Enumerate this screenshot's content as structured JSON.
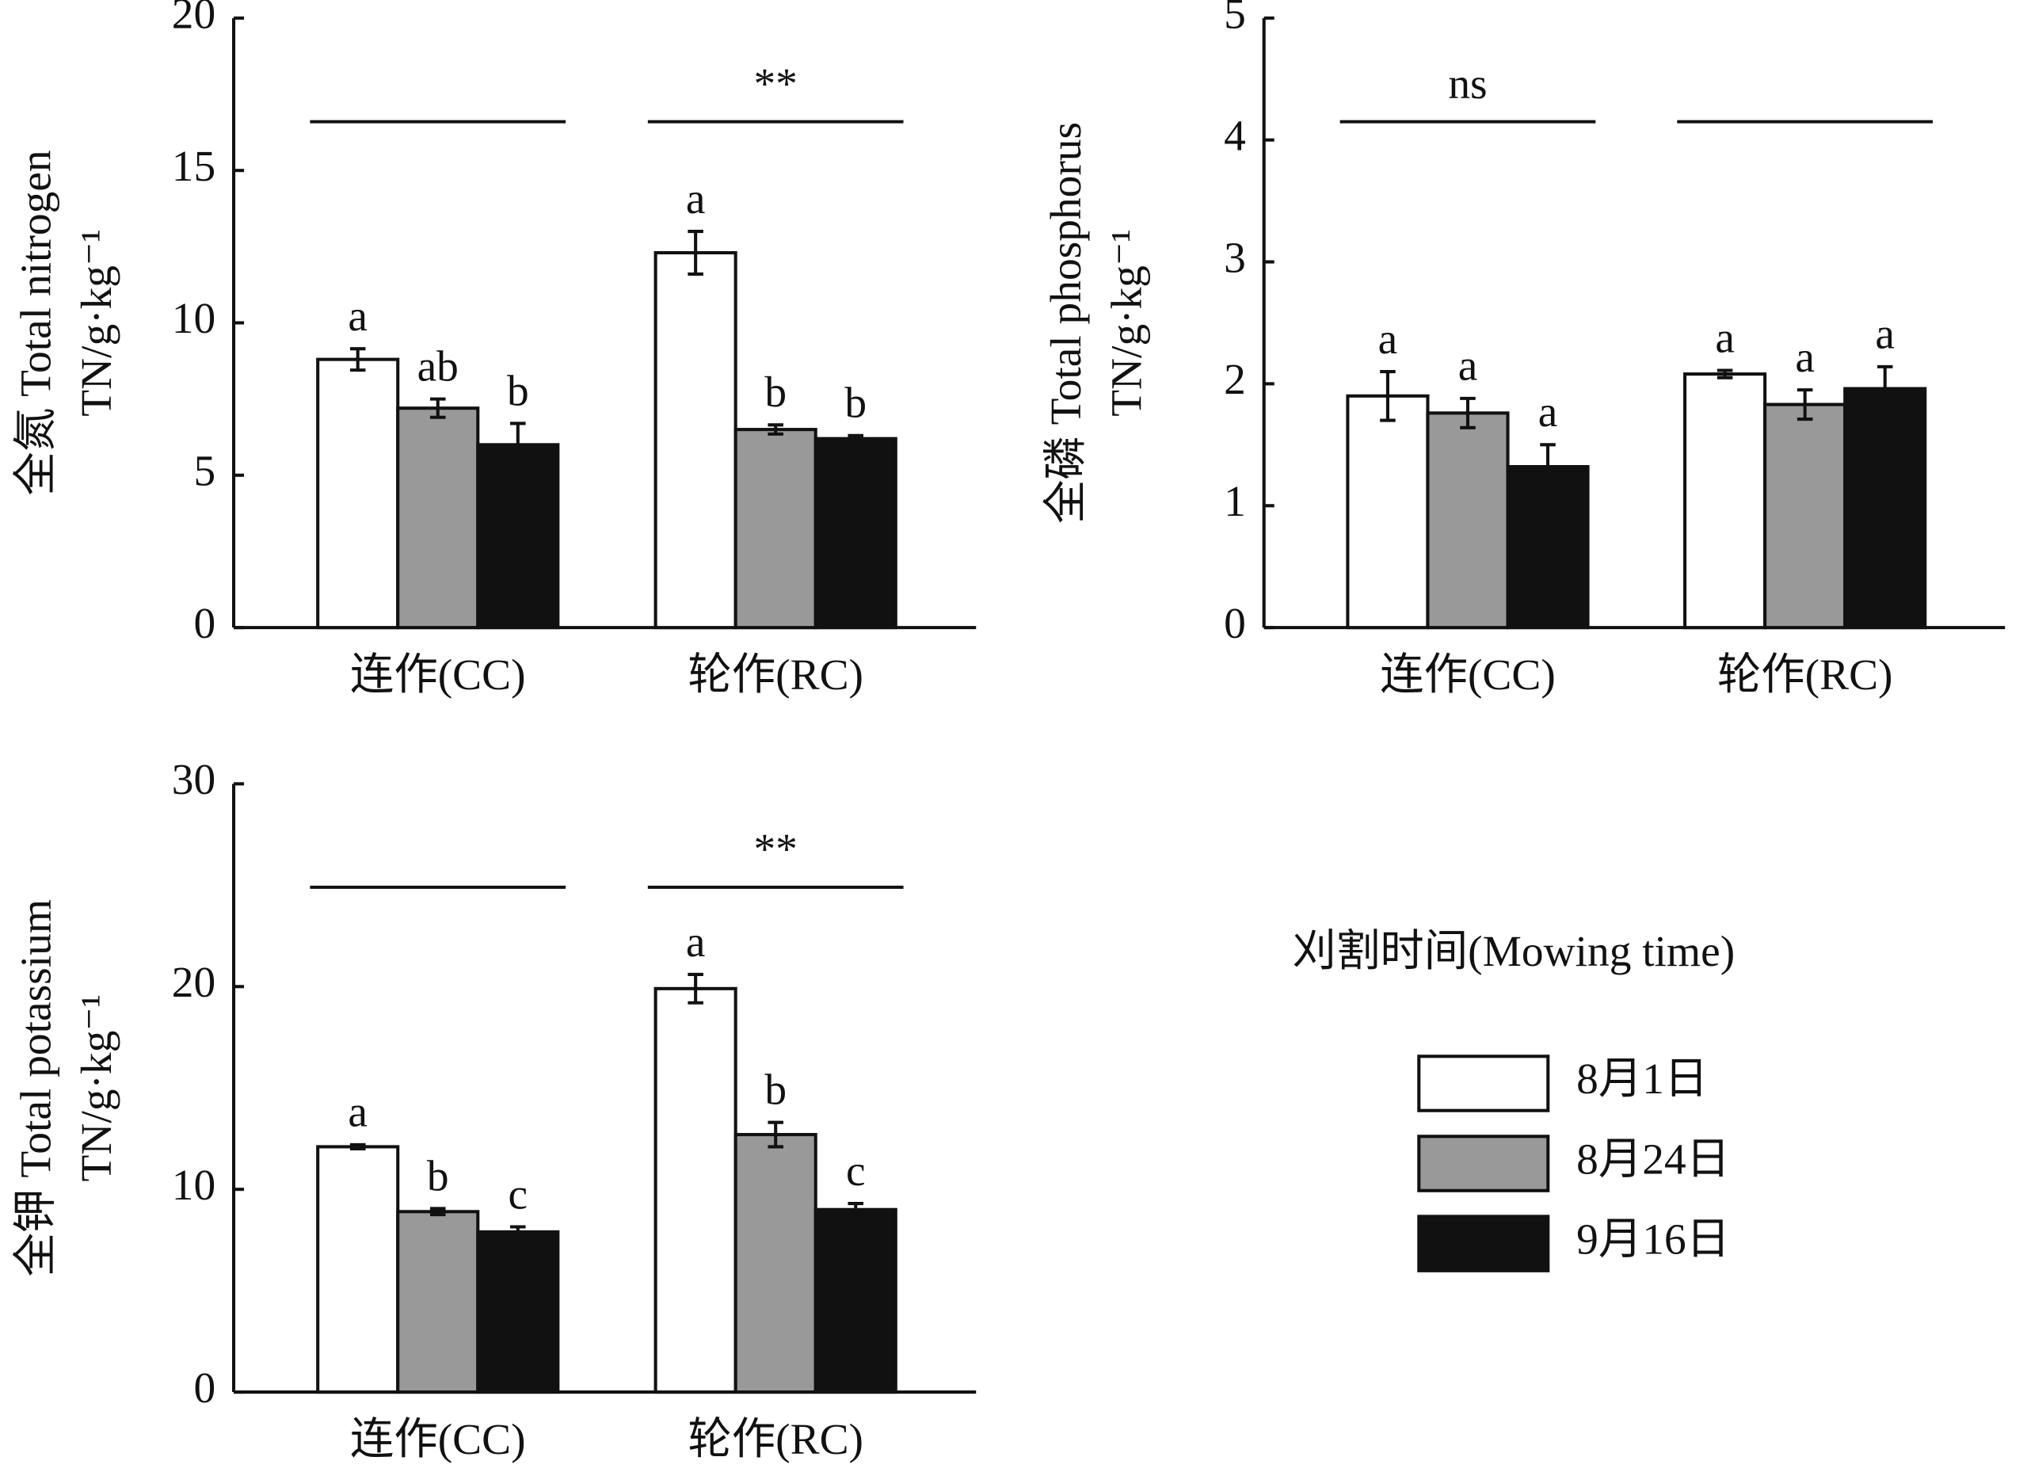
{
  "chart_data": [
    {
      "type": "bar",
      "ylabel": "全氮 Total nitrogen",
      "yunit": "TN/g·kg⁻¹",
      "categories": [
        "连作(CC)",
        "轮作(RC)"
      ],
      "ylim": [
        0,
        20
      ],
      "yticks": [
        0,
        5,
        10,
        15,
        20
      ],
      "significance": [
        null,
        "**"
      ],
      "series": [
        {
          "values": [
            8.8,
            12.3
          ],
          "errors": [
            0.35,
            0.7
          ],
          "letters": [
            "a",
            "a"
          ]
        },
        {
          "values": [
            7.2,
            6.5
          ],
          "errors": [
            0.3,
            0.15
          ],
          "letters": [
            "ab",
            "b"
          ]
        },
        {
          "values": [
            6.0,
            6.2
          ],
          "errors": [
            0.7,
            0.1
          ],
          "letters": [
            "b",
            "b"
          ]
        }
      ]
    },
    {
      "type": "bar",
      "ylabel": "全磷 Total phosphorus",
      "yunit": "TN/g·kg⁻¹",
      "categories": [
        "连作(CC)",
        "轮作(RC)"
      ],
      "ylim": [
        0,
        5
      ],
      "yticks": [
        0,
        1,
        2,
        3,
        4,
        5
      ],
      "significance": [
        "ns",
        null
      ],
      "series": [
        {
          "values": [
            1.9,
            2.08
          ],
          "errors": [
            0.2,
            0.03
          ],
          "letters": [
            "a",
            "a"
          ]
        },
        {
          "values": [
            1.76,
            1.83
          ],
          "errors": [
            0.12,
            0.12
          ],
          "letters": [
            "a",
            "a"
          ]
        },
        {
          "values": [
            1.32,
            1.96
          ],
          "errors": [
            0.18,
            0.18
          ],
          "letters": [
            "a",
            "a"
          ]
        }
      ]
    },
    {
      "type": "bar",
      "ylabel": "全钾 Total potassium",
      "yunit": "TN/g·kg⁻¹",
      "categories": [
        "连作(CC)",
        "轮作(RC)"
      ],
      "ylim": [
        0,
        30
      ],
      "yticks": [
        0,
        10,
        20,
        30
      ],
      "significance": [
        null,
        "**"
      ],
      "series": [
        {
          "values": [
            12.1,
            19.9
          ],
          "errors": [
            0.1,
            0.7
          ],
          "letters": [
            "a",
            "a"
          ]
        },
        {
          "values": [
            8.9,
            12.7
          ],
          "errors": [
            0.15,
            0.6
          ],
          "letters": [
            "b",
            "b"
          ]
        },
        {
          "values": [
            7.9,
            9.0
          ],
          "errors": [
            0.25,
            0.3
          ],
          "letters": [
            "c",
            "c"
          ]
        }
      ]
    }
  ],
  "legend": {
    "title": "刈割时间(Mowing time)",
    "entries": [
      {
        "name": "8月1日",
        "color": "#ffffff"
      },
      {
        "name": "8月24日",
        "color": "#999999"
      },
      {
        "name": "9月16日",
        "color": "#111111"
      }
    ]
  }
}
